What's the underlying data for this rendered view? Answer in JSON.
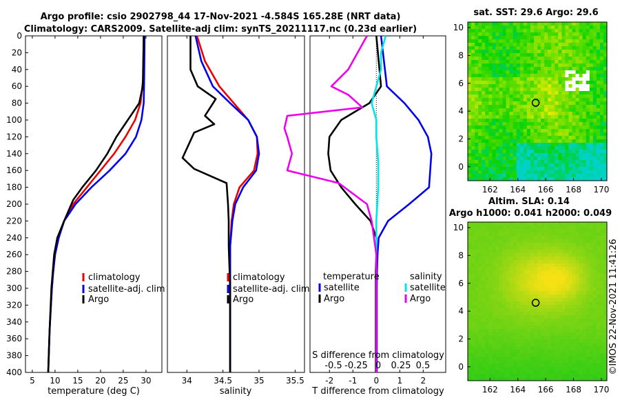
{
  "titles": {
    "line1": "Argo profile: csio 2902798_44 17-Nov-2021 -4.584S 165.28E (NRT data)",
    "line2": "Climatology: CARS2009. Satellite-adj clim: synTS_20211117.nc (0.23d earlier)",
    "sst_title": "sat. SST: 29.6 Argo: 29.6",
    "sla_title1": "Altim. SLA: 0.14",
    "sla_title2": "Argo h1000: 0.041 h2000: 0.049",
    "footer": "©IMOS 22-Nov-2021 11:41:26"
  },
  "colors": {
    "climatology": "#ee0000",
    "satellite": "#0000ee",
    "argo": "#000000",
    "sal_sat": "#00e5e5",
    "sal_argo": "#ee00ee"
  },
  "chart_data": [
    {
      "type": "line",
      "name": "temperature",
      "xlabel": "temperature (deg C)",
      "xlim": [
        3.5,
        33.5
      ],
      "xticks": [
        5,
        10,
        15,
        20,
        25,
        30
      ],
      "ylim": [
        400,
        0
      ],
      "yticks": [
        0,
        20,
        40,
        60,
        80,
        100,
        120,
        140,
        160,
        180,
        200,
        220,
        240,
        260,
        280,
        300,
        320,
        340,
        360,
        380,
        400
      ],
      "legend": [
        "climatology",
        "satellite-adj. clim",
        "Argo"
      ],
      "series": [
        {
          "name": "climatology",
          "depth": [
            0,
            50,
            80,
            100,
            120,
            140,
            160,
            180,
            200,
            220,
            240,
            260,
            280,
            300,
            350,
            400
          ],
          "values": [
            29.5,
            29.4,
            28.8,
            27.6,
            25.5,
            23,
            20,
            17,
            14,
            12,
            10.8,
            10,
            9.6,
            9.3,
            8.8,
            8.5
          ]
        },
        {
          "name": "satellite-adj. clim",
          "depth": [
            0,
            50,
            80,
            100,
            120,
            140,
            160,
            180,
            200,
            220,
            240,
            260,
            280,
            300,
            350,
            400
          ],
          "values": [
            29.7,
            29.6,
            29.5,
            29,
            27.8,
            25.5,
            22,
            18,
            14.5,
            12,
            10.8,
            10,
            9.6,
            9.3,
            8.8,
            8.5
          ]
        },
        {
          "name": "Argo",
          "depth": [
            0,
            60,
            80,
            100,
            120,
            140,
            160,
            180,
            195,
            220,
            240,
            260,
            280,
            300,
            350,
            400
          ],
          "values": [
            29.5,
            29.3,
            28.5,
            26,
            23.5,
            21.5,
            19,
            16,
            14,
            12,
            10.5,
            9.8,
            9.5,
            9.2,
            8.8,
            8.5
          ]
        }
      ]
    },
    {
      "type": "line",
      "name": "salinity",
      "xlabel": "salinity",
      "xlim": [
        33.73,
        35.63
      ],
      "xticks": [
        34,
        34.5,
        35,
        35.5
      ],
      "tick_labels": [
        "34",
        "34.5",
        "35",
        "35.5"
      ],
      "ylim": [
        400,
        0
      ],
      "legend": [
        "climatology",
        "satellite-adj. clim",
        "Argo"
      ],
      "series": [
        {
          "name": "climatology",
          "depth": [
            0,
            30,
            60,
            80,
            100,
            120,
            140,
            160,
            180,
            200,
            220,
            250,
            300,
            400
          ],
          "values": [
            34.14,
            34.25,
            34.45,
            34.65,
            34.85,
            34.97,
            34.98,
            34.93,
            34.73,
            34.65,
            34.62,
            34.6,
            34.6,
            34.6
          ]
        },
        {
          "name": "satellite-adj. clim",
          "depth": [
            0,
            30,
            60,
            80,
            100,
            120,
            140,
            160,
            180,
            200,
            220,
            250,
            300,
            400
          ],
          "values": [
            34.12,
            34.2,
            34.36,
            34.6,
            34.85,
            34.97,
            35,
            34.96,
            34.78,
            34.67,
            34.63,
            34.6,
            34.6,
            34.6
          ]
        },
        {
          "name": "Argo",
          "depth": [
            0,
            40,
            60,
            75,
            95,
            105,
            115,
            145,
            158,
            175,
            200,
            220,
            250,
            300,
            400
          ],
          "values": [
            34.05,
            34.05,
            34.15,
            34.4,
            34.25,
            34.38,
            34.1,
            33.94,
            34.1,
            34.55,
            34.57,
            34.58,
            34.58,
            34.6,
            34.6
          ]
        }
      ]
    },
    {
      "type": "line",
      "name": "difference",
      "xlabel": "T difference from climatology",
      "xlim": [
        -2.83,
        2.96
      ],
      "xticks": [
        -2,
        -1,
        0,
        1,
        2
      ],
      "top_label": "S difference from climatology",
      "top_ticks": [
        "-0.5",
        "-0.25",
        "0",
        "0.25",
        "0.5"
      ],
      "ylim": [
        400,
        0
      ],
      "legend_header_left": "temperature",
      "legend_header_right": "salinity",
      "legend_left": [
        "satellite",
        "Argo"
      ],
      "legend_right": [
        "satellite",
        "Argo"
      ],
      "series": [
        {
          "name": "temperature satellite",
          "depth": [
            0,
            60,
            80,
            100,
            120,
            140,
            160,
            180,
            200,
            220,
            240,
            260,
            280,
            300,
            400
          ],
          "values": [
            0.2,
            0.45,
            1.2,
            1.8,
            2.2,
            2.35,
            2.3,
            2.25,
            1.4,
            0.5,
            0.1,
            0.05,
            0.03,
            0.02,
            0.02
          ]
        },
        {
          "name": "temperature Argo",
          "depth": [
            0,
            60,
            80,
            100,
            120,
            140,
            160,
            180,
            200,
            220,
            240,
            260,
            280,
            300,
            400
          ],
          "values": [
            0,
            0.2,
            -0.3,
            -1.5,
            -2,
            -2.05,
            -1.95,
            -1.5,
            -0.9,
            -0.25,
            0,
            0,
            -0.02,
            -0.02,
            -0.02
          ]
        },
        {
          "name": "salinity satellite",
          "depth": [
            0,
            20,
            40,
            60,
            80,
            100,
            120,
            150,
            180,
            220,
            260,
            300,
            400
          ],
          "values": [
            0.1,
            0.05,
            0.05,
            0.0,
            -0.05,
            0.0,
            0.0,
            0.02,
            0.02,
            0.0,
            0.0,
            0.0,
            0.0
          ]
        },
        {
          "name": "salinity Argo",
          "depth": [
            0,
            20,
            40,
            60,
            70,
            85,
            95,
            110,
            120,
            140,
            160,
            175,
            200,
            220,
            260,
            300,
            400
          ],
          "values": [
            -0.1,
            -0.2,
            -0.3,
            -0.48,
            -0.3,
            -0.15,
            -0.95,
            -0.98,
            -0.95,
            -0.9,
            -0.95,
            -0.4,
            -0.1,
            -0.05,
            0,
            0,
            0
          ]
        }
      ]
    },
    {
      "type": "heatmap",
      "name": "sst map",
      "xlim": [
        160.4,
        170.4
      ],
      "ylim": [
        -1,
        10.4
      ],
      "xticks": [
        162,
        164,
        166,
        168,
        170
      ],
      "yticks": [
        0,
        2,
        4,
        6,
        8,
        10
      ],
      "marker": {
        "lon": 165.28,
        "lat": 4.6
      },
      "colormap": "green-to-yellow (SST)"
    },
    {
      "type": "heatmap",
      "name": "sla map",
      "xlim": [
        160.4,
        170.4
      ],
      "ylim": [
        -1,
        10.4
      ],
      "xticks": [
        162,
        164,
        166,
        168,
        170
      ],
      "yticks": [
        0,
        2,
        4,
        6,
        8,
        10
      ],
      "marker": {
        "lon": 165.28,
        "lat": 4.6
      },
      "colormap": "green-to-yellow (SLA)"
    }
  ]
}
